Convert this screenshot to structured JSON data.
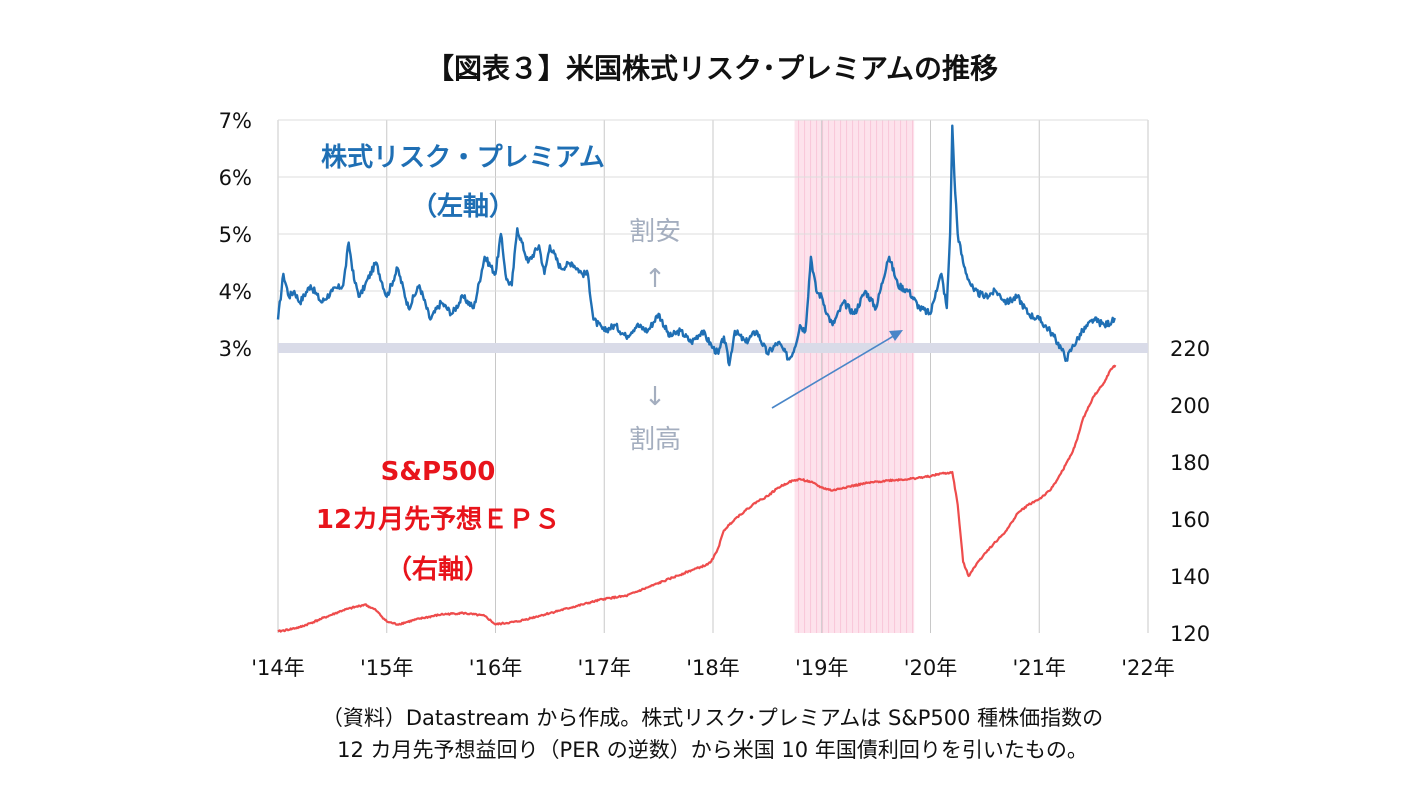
{
  "title": "【図表３】米国株式リスク･プレミアムの推移",
  "note_lines": [
    "（資料）Datastream から作成。株式リスク･プレミアムは S&P500 種株価指数の",
    "12 カ月先予想益回り（PER の逆数）から米国 10 年国債利回りを引いたもの。"
  ],
  "annotations": {
    "cheap": "割安",
    "expensive": "割高",
    "up_arrow": "↑",
    "down_arrow": "↓"
  },
  "colors": {
    "erp": "#1f6fb4",
    "eps": "#ee4c4c",
    "erp_label": "#1f6fb4",
    "eps_label": "#e8141b",
    "shade": "#fde2ec",
    "band": "#d9dbe8",
    "grid": "#c8c8c8",
    "arrow": "#4a86c8",
    "annotation": "#a4aebf"
  },
  "chart_data": {
    "type": "line",
    "x_ticks": [
      "'14年",
      "'15年",
      "'16年",
      "'17年",
      "'18年",
      "'19年",
      "'20年",
      "'21年",
      "'22年"
    ],
    "x_range": [
      2014.0,
      2022.0
    ],
    "shaded_period": [
      2018.75,
      2019.85
    ],
    "highlight_level_left": 3.0,
    "y_left": {
      "range": [
        3,
        7
      ],
      "ticks": [
        "3%",
        "4%",
        "5%",
        "6%",
        "7%"
      ]
    },
    "y_right": {
      "range": [
        120,
        220
      ],
      "ticks": [
        "120",
        "140",
        "160",
        "180",
        "200",
        "220"
      ]
    },
    "series": [
      {
        "name": "株式リスク・プレミアム",
        "name_lines": [
          "株式リスク・プレミアム",
          "（左軸）"
        ],
        "axis": "left",
        "x": [
          2014.0,
          2014.05,
          2014.1,
          2014.15,
          2014.2,
          2014.3,
          2014.4,
          2014.5,
          2014.6,
          2014.65,
          2014.7,
          2014.75,
          2014.8,
          2014.9,
          2015.0,
          2015.1,
          2015.2,
          2015.3,
          2015.4,
          2015.5,
          2015.6,
          2015.7,
          2015.8,
          2015.9,
          2016.0,
          2016.05,
          2016.1,
          2016.15,
          2016.2,
          2016.3,
          2016.4,
          2016.45,
          2016.5,
          2016.6,
          2016.7,
          2016.8,
          2016.85,
          2016.9,
          2017.0,
          2017.1,
          2017.2,
          2017.3,
          2017.4,
          2017.5,
          2017.6,
          2017.7,
          2017.8,
          2017.9,
          2018.0,
          2018.05,
          2018.1,
          2018.15,
          2018.2,
          2018.3,
          2018.4,
          2018.5,
          2018.6,
          2018.7,
          2018.75,
          2018.8,
          2018.85,
          2018.9,
          2018.95,
          2019.0,
          2019.05,
          2019.1,
          2019.2,
          2019.3,
          2019.4,
          2019.5,
          2019.6,
          2019.62,
          2019.7,
          2019.8,
          2019.9,
          2020.0,
          2020.05,
          2020.1,
          2020.15,
          2020.18,
          2020.2,
          2020.22,
          2020.25,
          2020.3,
          2020.35,
          2020.4,
          2020.5,
          2020.6,
          2020.7,
          2020.8,
          2020.9,
          2021.0,
          2021.1,
          2021.2,
          2021.25,
          2021.3,
          2021.4,
          2021.5,
          2021.6,
          2021.7
        ],
        "values": [
          3.5,
          4.3,
          3.9,
          4.0,
          3.8,
          4.1,
          3.8,
          4.0,
          4.1,
          4.85,
          4.2,
          3.9,
          4.1,
          4.5,
          3.9,
          4.4,
          3.7,
          4.1,
          3.5,
          3.8,
          3.6,
          3.9,
          3.7,
          4.6,
          4.3,
          5.0,
          4.2,
          4.1,
          5.1,
          4.5,
          4.8,
          4.3,
          4.8,
          4.4,
          4.5,
          4.3,
          4.3,
          3.5,
          3.3,
          3.4,
          3.2,
          3.4,
          3.3,
          3.6,
          3.2,
          3.3,
          3.1,
          3.3,
          3.0,
          2.9,
          3.2,
          2.7,
          3.3,
          3.1,
          3.3,
          2.9,
          3.1,
          2.8,
          3.0,
          3.4,
          3.3,
          4.6,
          4.0,
          3.9,
          3.6,
          3.4,
          3.8,
          3.6,
          4.0,
          3.7,
          4.5,
          4.6,
          4.1,
          4.0,
          3.7,
          3.6,
          4.0,
          4.3,
          3.7,
          5.0,
          6.9,
          6.0,
          5.0,
          4.5,
          4.2,
          4.0,
          3.9,
          4.0,
          3.8,
          3.9,
          3.6,
          3.5,
          3.3,
          3.0,
          2.8,
          3.0,
          3.3,
          3.5,
          3.4,
          3.5
        ]
      },
      {
        "name": "S&P500 12カ月先予想ＥＰＳ",
        "name_lines": [
          "S&P500",
          "12カ月先予想ＥＰＳ",
          "（右軸）"
        ],
        "axis": "right",
        "x": [
          2014.0,
          2014.2,
          2014.4,
          2014.6,
          2014.8,
          2014.9,
          2015.0,
          2015.1,
          2015.3,
          2015.5,
          2015.7,
          2015.9,
          2016.0,
          2016.1,
          2016.2,
          2016.4,
          2016.6,
          2016.7,
          2016.8,
          2017.0,
          2017.2,
          2017.4,
          2017.6,
          2017.8,
          2017.95,
          2018.0,
          2018.05,
          2018.1,
          2018.2,
          2018.3,
          2018.4,
          2018.5,
          2018.6,
          2018.7,
          2018.8,
          2018.9,
          2019.0,
          2019.1,
          2019.2,
          2019.4,
          2019.6,
          2019.8,
          2020.0,
          2020.1,
          2020.15,
          2020.2,
          2020.25,
          2020.3,
          2020.35,
          2020.4,
          2020.5,
          2020.6,
          2020.7,
          2020.8,
          2020.9,
          2021.0,
          2021.1,
          2021.2,
          2021.3,
          2021.35,
          2021.4,
          2021.5,
          2021.6,
          2021.65,
          2021.7
        ],
        "values": [
          120.5,
          122,
          125,
          128,
          130,
          128,
          124,
          123,
          125,
          126.5,
          127,
          126,
          123,
          123.5,
          124,
          126,
          128,
          129,
          130,
          132,
          133,
          136,
          139,
          142,
          144,
          146,
          150,
          156,
          160,
          163,
          166,
          168,
          171,
          173,
          174,
          173,
          171,
          170,
          171,
          172.5,
          173.5,
          174,
          175,
          176,
          176,
          176.5,
          165,
          145,
          140,
          143,
          148,
          152,
          156,
          162,
          165,
          167,
          170,
          176,
          183,
          188,
          195,
          203,
          208,
          212,
          214
        ]
      }
    ]
  }
}
